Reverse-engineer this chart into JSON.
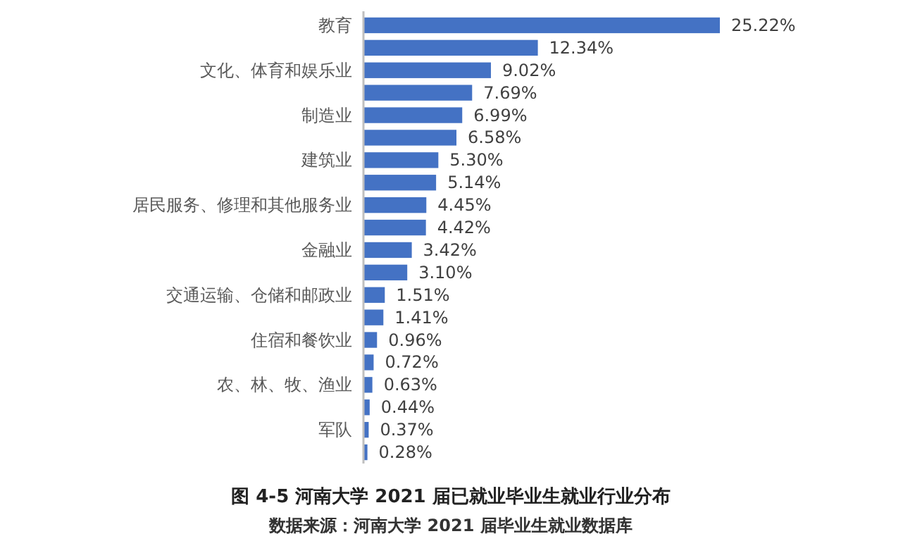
{
  "chart_data": {
    "type": "bar",
    "orientation": "horizontal",
    "title": "图 4-5  河南大学 2021 届已就业毕业生就业行业分布",
    "annotations": [
      "数据来源：河南大学 2021 届毕业生就业数据库"
    ],
    "categories": [
      "教育",
      null,
      "文化、体育和娱乐业",
      null,
      "制造业",
      null,
      "建筑业",
      null,
      "居民服务、修理和其他服务业",
      null,
      "金融业",
      null,
      "交通运输、仓储和邮政业",
      null,
      "住宿和餐饮业",
      null,
      "农、林、牧、渔业",
      null,
      "军队",
      null
    ],
    "values": [
      25.22,
      12.34,
      9.02,
      7.69,
      6.99,
      6.58,
      5.3,
      5.14,
      4.45,
      4.42,
      3.42,
      3.1,
      1.51,
      1.41,
      0.96,
      0.72,
      0.63,
      0.44,
      0.37,
      0.28
    ],
    "value_labels": [
      "25.22%",
      "12.34%",
      "9.02%",
      "7.69%",
      "6.99%",
      "6.58%",
      "5.30%",
      "5.14%",
      "4.45%",
      "4.42%",
      "3.42%",
      "3.10%",
      "1.51%",
      "1.41%",
      "0.96%",
      "0.72%",
      "0.63%",
      "0.44%",
      "0.37%",
      "0.28%"
    ],
    "color": "#4472c4"
  }
}
